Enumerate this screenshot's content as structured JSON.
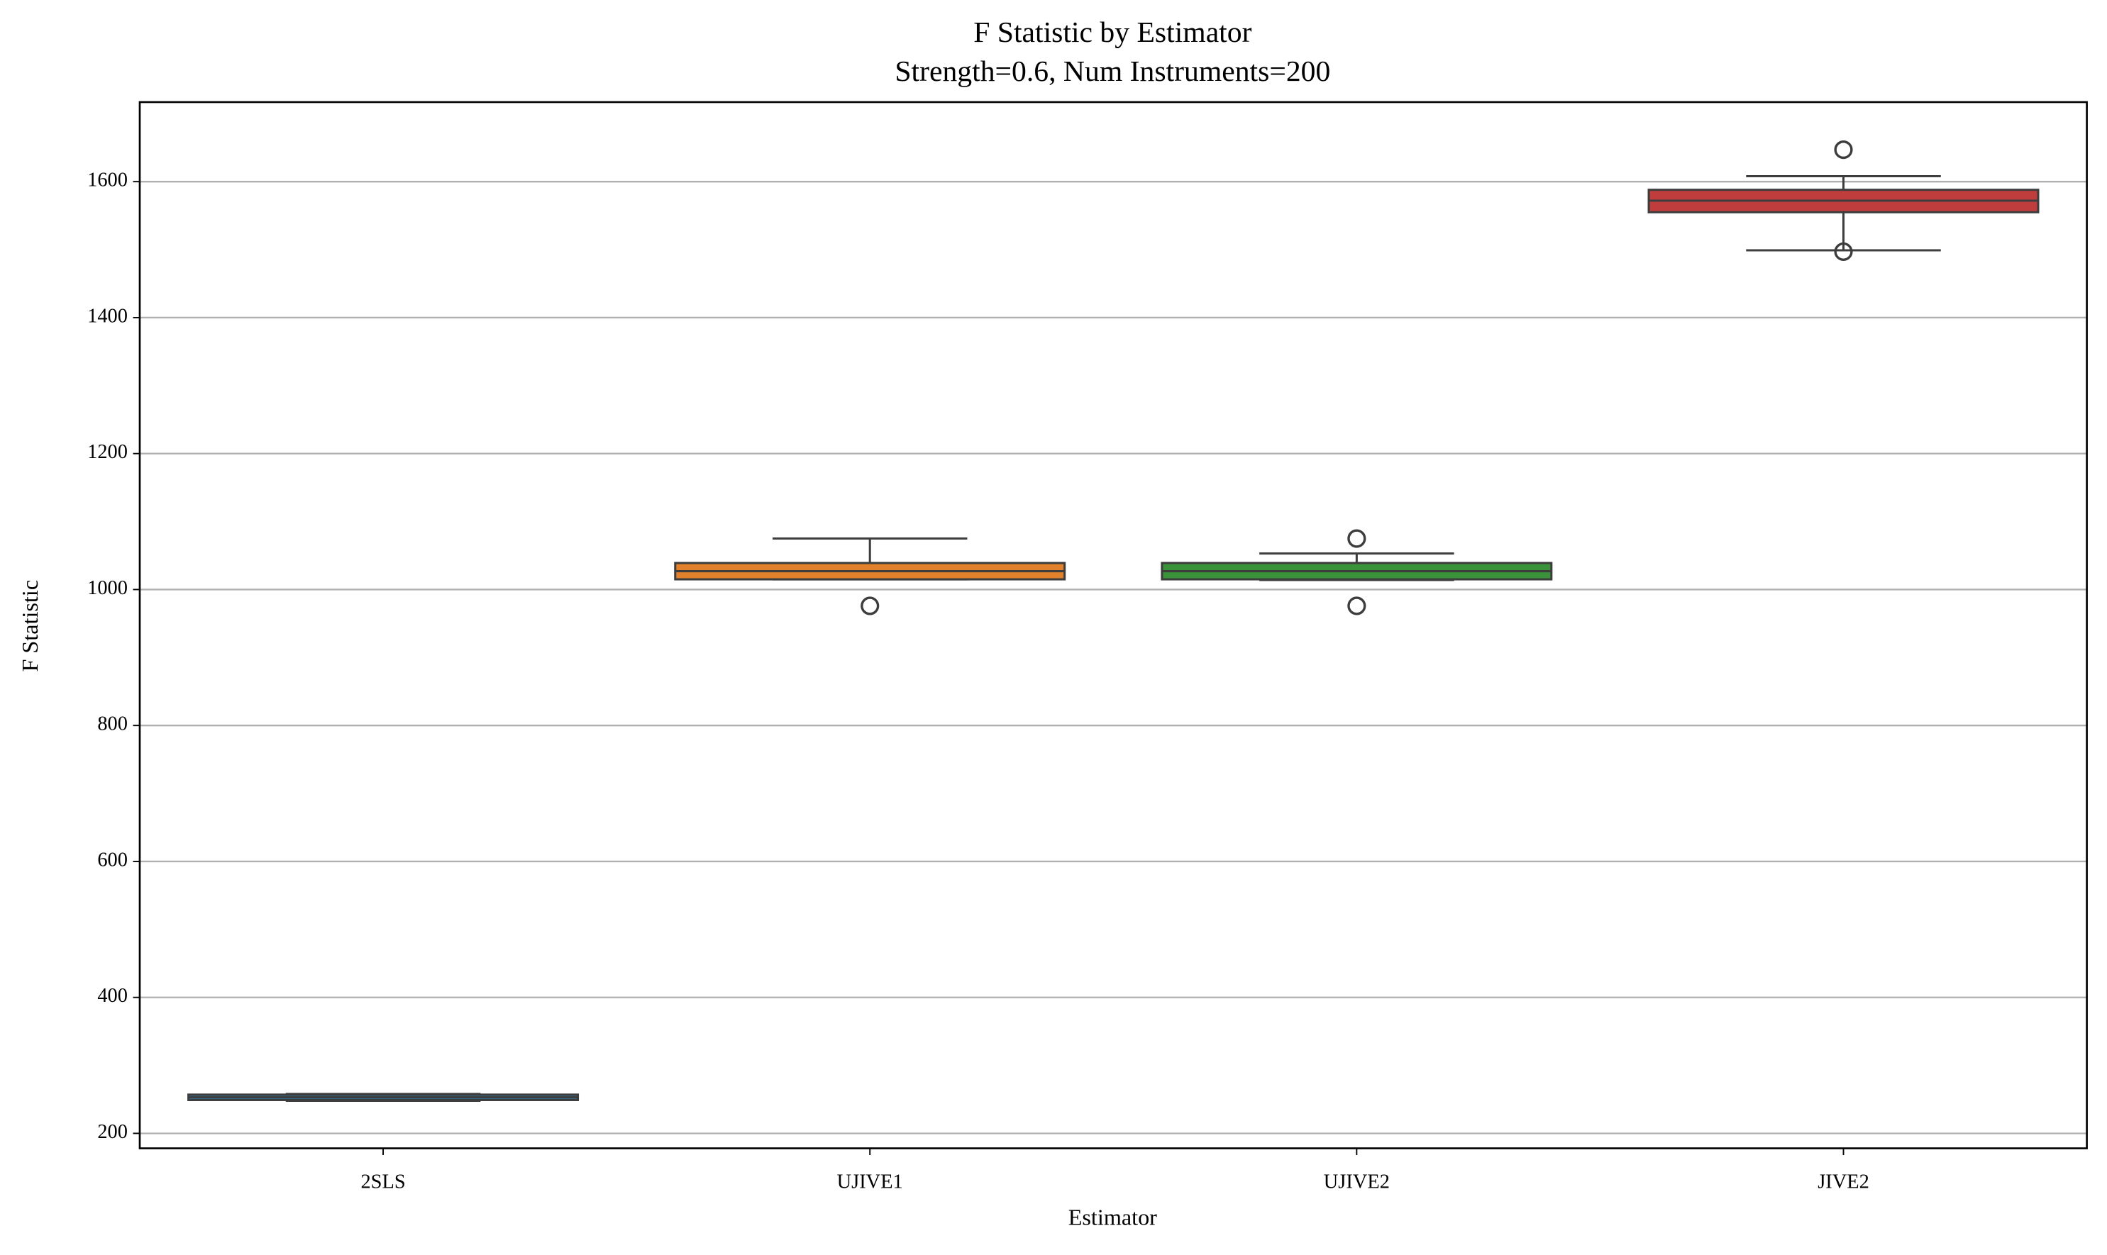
{
  "chart_data": {
    "type": "box",
    "title": "F Statistic by Estimator",
    "subtitle": "Strength=0.6, Num Instruments=200",
    "x_label": "Estimator",
    "y_label": "F Statistic",
    "categories": [
      "2SLS",
      "UJIVE1",
      "UJIVE2",
      "JIVE2"
    ],
    "colors": [
      "#3274a1",
      "#e1812c",
      "#3a923a",
      "#c03d3e"
    ],
    "boxes": [
      {
        "min": 248,
        "q1": 249,
        "median": 253,
        "q3": 257,
        "max": 258,
        "outliers": []
      },
      {
        "min": 1015,
        "q1": 1015,
        "median": 1027,
        "q3": 1039,
        "max": 1075,
        "outliers": [
          976
        ]
      },
      {
        "min": 1014,
        "q1": 1015,
        "median": 1027,
        "q3": 1039,
        "max": 1053,
        "outliers": [
          1075,
          976
        ]
      },
      {
        "min": 1499,
        "q1": 1555,
        "median": 1572,
        "q3": 1588,
        "max": 1608,
        "outliers": [
          1647,
          1497
        ]
      }
    ],
    "ylim": [
      178,
      1717
    ],
    "yticks": [
      200,
      400,
      600,
      800,
      1000,
      1200,
      1400,
      1600
    ],
    "grid": true
  }
}
